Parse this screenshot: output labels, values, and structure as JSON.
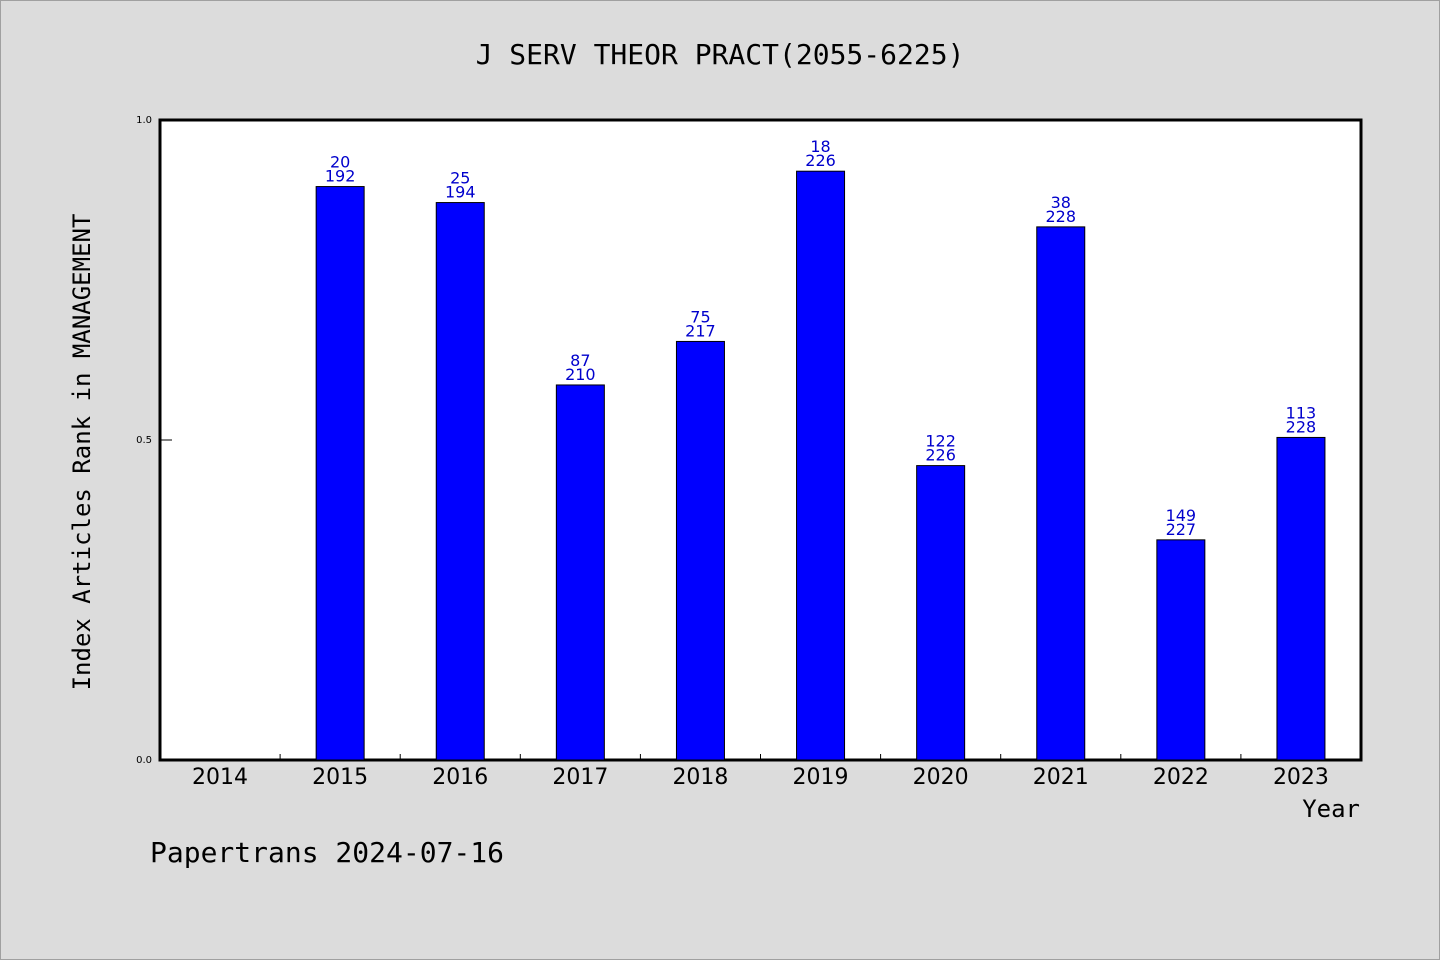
{
  "chart_data": {
    "type": "bar",
    "title": "J SERV THEOR PRACT(2055-6225)",
    "xlabel": "Year",
    "ylabel": "Index Articles Rank in MANAGEMENT",
    "ylim": [
      0,
      1
    ],
    "yticks": [
      "0.0",
      "0.5",
      "1.0"
    ],
    "ytick_values": [
      0,
      0.5,
      1
    ],
    "grid": false,
    "categories": [
      "2014",
      "2015",
      "2016",
      "2017",
      "2018",
      "2019",
      "2020",
      "2021",
      "2022",
      "2023"
    ],
    "values": [
      null,
      0.896,
      0.871,
      0.586,
      0.654,
      0.92,
      0.46,
      0.833,
      0.344,
      0.504
    ],
    "rank_labels": [
      "",
      "20",
      "25",
      "87",
      "75",
      "18",
      "122",
      "38",
      "149",
      "113"
    ],
    "total_labels": [
      "",
      "192",
      "194",
      "210",
      "217",
      "226",
      "226",
      "228",
      "227",
      "228"
    ],
    "colors": {
      "bar": "#0000ff",
      "bar_label": "#0000cc",
      "background": "#dcdcdc",
      "plot_background": "#ffffff"
    }
  },
  "footer": "Papertrans 2024-07-16"
}
